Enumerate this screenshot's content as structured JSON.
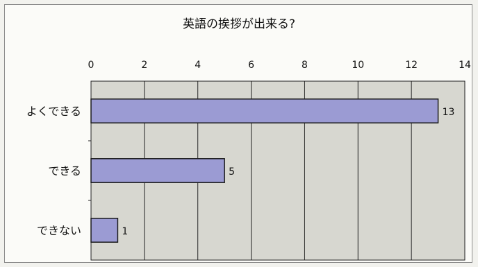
{
  "chart_data": {
    "type": "bar",
    "orientation": "horizontal",
    "title": "英語の挨拶が出来る?",
    "categories": [
      "よくできる",
      "できる",
      "できない"
    ],
    "values": [
      13,
      5,
      1
    ],
    "data_labels": [
      "13",
      "5",
      "1"
    ],
    "xlim": [
      0,
      14
    ],
    "x_ticks": [
      "0",
      "2",
      "4",
      "6",
      "8",
      "10",
      "12",
      "14"
    ],
    "xlabel": "",
    "ylabel": "",
    "x_axis_position": "top",
    "grid": "vertical",
    "legend": "none",
    "colors": {
      "bar_fill": "#9b9bd3",
      "bar_stroke": "#1a1a1a",
      "plot_bg": "#d7d7d0",
      "grid": "#222222",
      "text": "#111111"
    }
  }
}
